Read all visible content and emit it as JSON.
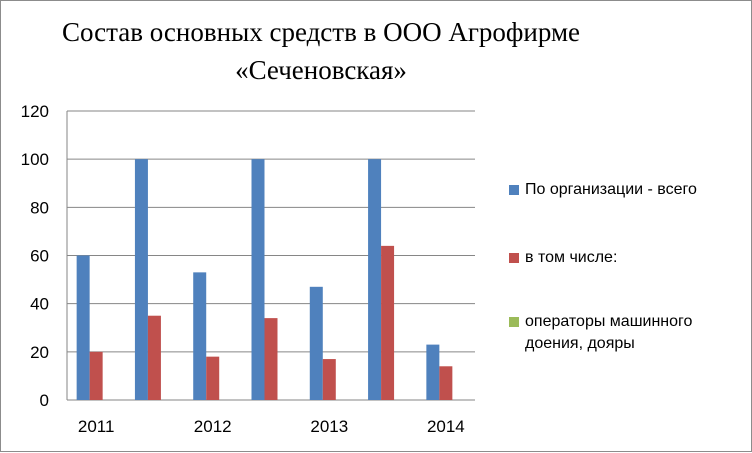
{
  "chart_data": {
    "type": "bar",
    "title_lines": [
      "Состав основных средств в ООО Агрофирме",
      "«Сеченовская»"
    ],
    "xlabel": "",
    "ylabel": "",
    "ylim": [
      0,
      120
    ],
    "yticks": [
      "0",
      "20",
      "40",
      "60",
      "80",
      "100",
      "120"
    ],
    "grid": true,
    "legend_position": "right",
    "categories": [
      "2011",
      "",
      "2012",
      "",
      "2013",
      "",
      "2014"
    ],
    "series": [
      {
        "name": "По организации - всего",
        "color": "#4f81bd",
        "values": [
          60,
          100,
          53,
          100,
          47,
          100,
          23
        ]
      },
      {
        "name": "в том числе:",
        "color": "#c0504d",
        "values": [
          20,
          35,
          18,
          34,
          17,
          64,
          14
        ]
      },
      {
        "name": "операторы машинного доения, дояры",
        "color": "#9bbb59",
        "values": [
          0,
          0,
          0,
          0,
          0,
          0,
          0
        ]
      }
    ]
  }
}
